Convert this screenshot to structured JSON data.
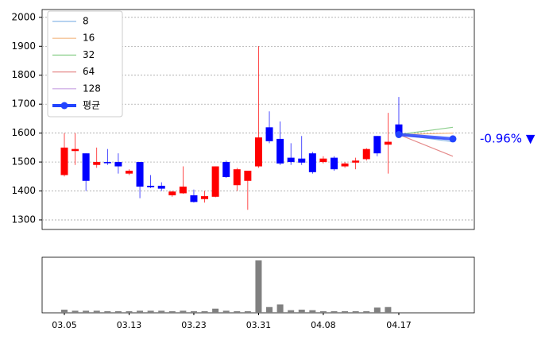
{
  "chart_data": {
    "type": "candlestick",
    "categories": [
      "03.05",
      null,
      null,
      null,
      null,
      null,
      "03.13",
      null,
      null,
      null,
      null,
      null,
      "03.23",
      null,
      null,
      null,
      null,
      null,
      "03.31",
      null,
      null,
      null,
      null,
      null,
      "04.08",
      null,
      null,
      null,
      null,
      null,
      null,
      "04.17"
    ],
    "open": [
      1455,
      1538,
      1530,
      1490,
      1500,
      1500,
      1460,
      1500,
      1418,
      1418,
      1385,
      1392,
      1385,
      1372,
      1380,
      1500,
      1420,
      1435,
      1485,
      1620,
      1580,
      1515,
      1512,
      1530,
      1500,
      1515,
      1485,
      1498,
      1510,
      1590,
      1560,
      1630
    ],
    "high": [
      1600,
      1600,
      1530,
      1550,
      1545,
      1530,
      1475,
      1500,
      1455,
      1430,
      1400,
      1485,
      1405,
      1400,
      1485,
      1505,
      1480,
      1470,
      1900,
      1675,
      1640,
      1565,
      1590,
      1535,
      1520,
      1520,
      1500,
      1515,
      1548,
      1590,
      1670,
      1725
    ],
    "low": [
      1450,
      1490,
      1400,
      1480,
      1490,
      1460,
      1455,
      1375,
      1410,
      1400,
      1380,
      1390,
      1360,
      1360,
      1378,
      1445,
      1400,
      1335,
      1480,
      1565,
      1490,
      1490,
      1490,
      1460,
      1495,
      1470,
      1480,
      1475,
      1505,
      1520,
      1460,
      1590
    ],
    "close": [
      1550,
      1545,
      1435,
      1500,
      1497,
      1485,
      1470,
      1415,
      1413,
      1408,
      1398,
      1415,
      1362,
      1382,
      1485,
      1448,
      1475,
      1470,
      1585,
      1572,
      1495,
      1500,
      1498,
      1465,
      1512,
      1475,
      1495,
      1505,
      1545,
      1530,
      1570,
      1595
    ],
    "volume": [
      6,
      4,
      4,
      4,
      3,
      3,
      3,
      4,
      4,
      4,
      3,
      4,
      3,
      3,
      8,
      4,
      3,
      3,
      100,
      11,
      16,
      5,
      6,
      5,
      3,
      3,
      3,
      3,
      3,
      10,
      11,
      0
    ],
    "up_color": "#ff0000",
    "down_color": "#0000ff",
    "volume_color": "#808080",
    "ylim": [
      1267,
      2027
    ],
    "yticks": [
      1300,
      1400,
      1500,
      1600,
      1700,
      1800,
      1900,
      2000
    ],
    "volume_ylim": [
      0,
      106
    ],
    "grid": true,
    "forecast": [
      {
        "name": "8",
        "color": "#8ab8e6",
        "value": 1570
      },
      {
        "name": "16",
        "color": "#f4b883",
        "value": 1600
      },
      {
        "name": "32",
        "color": "#8ccf8c",
        "value": 1620
      },
      {
        "name": "64",
        "color": "#e58a8a",
        "value": 1520
      },
      {
        "name": "128",
        "color": "#c9a3e3",
        "value": 1577
      },
      {
        "name": "평균",
        "color": "#2244ff",
        "value": 1580
      }
    ],
    "annotation": "-0.96% ▼",
    "legend": "upper left"
  }
}
